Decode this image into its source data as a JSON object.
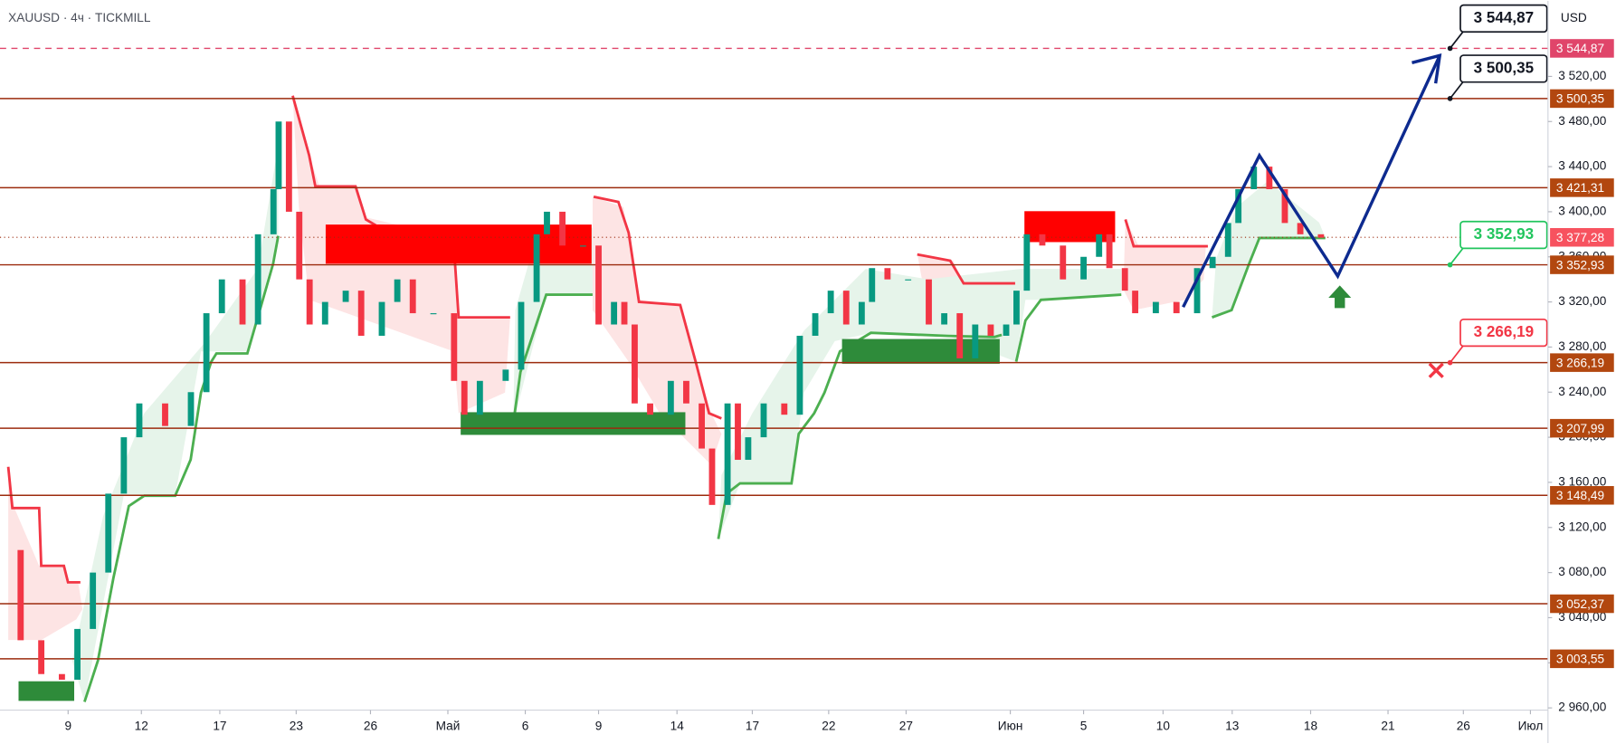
{
  "chart_data": {
    "type": "candlestick",
    "title": "XAUUSD · 4ч · TICKMILL",
    "currency": "USD",
    "x": [
      1,
      4,
      8,
      12,
      15,
      18,
      21,
      24,
      27,
      32,
      37,
      40,
      43,
      47,
      50,
      53,
      54,
      56,
      58,
      60,
      63,
      67,
      70,
      74,
      77,
      80,
      84,
      88,
      90,
      93,
      98,
      101,
      104,
      106,
      109,
      113,
      116,
      119,
      121,
      123,
      126,
      130,
      133,
      136,
      138,
      141,
      143,
      145,
      148,
      152,
      155,
      158,
      161,
      164,
      167,
      169,
      172,
      176,
      180,
      183,
      186,
      189,
      192,
      195,
      197,
      199,
      202,
      206,
      210,
      213,
      215,
      218,
      220,
      224,
      228,
      232,
      235,
      238,
      240,
      243,
      246,
      249,
      252,
      256
    ],
    "values": [
      3100,
      3020,
      2990,
      2985,
      3030,
      3080,
      3150,
      3200,
      3230,
      3210,
      3240,
      3310,
      3340,
      3300,
      3380,
      3420,
      3480,
      3400,
      3340,
      3300,
      3320,
      3330,
      3290,
      3320,
      3340,
      3310,
      3310,
      3250,
      3220,
      3250,
      3260,
      3320,
      3380,
      3400,
      3370,
      3370,
      3300,
      3320,
      3300,
      3230,
      3220,
      3250,
      3230,
      3190,
      3140,
      3230,
      3180,
      3200,
      3230,
      3220,
      3290,
      3310,
      3330,
      3300,
      3320,
      3350,
      3340,
      3340,
      3300,
      3310,
      3270,
      3300,
      3290,
      3300,
      3330,
      3380,
      3370,
      3340,
      3360,
      3380,
      3350,
      3330,
      3310,
      3320,
      3310,
      3350,
      3360,
      3390,
      3420,
      3440,
      3420,
      3390,
      3380,
      3377
    ],
    "xlim": [
      0,
      300
    ],
    "ylim": [
      2958,
      3587
    ],
    "xticks": [
      {
        "value": 13.2,
        "label": "9"
      },
      {
        "value": 27.4,
        "label": "12"
      },
      {
        "value": 42.6,
        "label": "17"
      },
      {
        "value": 57.4,
        "label": "23"
      },
      {
        "value": 71.8,
        "label": "26"
      },
      {
        "value": 86.8,
        "label": "Май"
      },
      {
        "value": 101.8,
        "label": "6"
      },
      {
        "value": 116,
        "label": "9"
      },
      {
        "value": 131.2,
        "label": "14"
      },
      {
        "value": 145.8,
        "label": "17"
      },
      {
        "value": 160.6,
        "label": "22"
      },
      {
        "value": 175.6,
        "label": "27"
      },
      {
        "value": 195.8,
        "label": "Июн"
      },
      {
        "value": 210,
        "label": "5"
      },
      {
        "value": 225.4,
        "label": "10"
      },
      {
        "value": 238.8,
        "label": "13"
      },
      {
        "value": 254,
        "label": "18"
      },
      {
        "value": 269,
        "label": "21"
      },
      {
        "value": 283.6,
        "label": "26"
      },
      {
        "value": 296.6,
        "label": "Июл"
      }
    ],
    "yticks": [
      {
        "value": 2960,
        "label": "2 960,00"
      },
      {
        "value": 3000,
        "label": "3 000,00"
      },
      {
        "value": 3040,
        "label": "3 040,00"
      },
      {
        "value": 3080,
        "label": "3 080,00"
      },
      {
        "value": 3120,
        "label": "3 120,00"
      },
      {
        "value": 3160,
        "label": "3 160,00"
      },
      {
        "value": 3200,
        "label": "3 200,00"
      },
      {
        "value": 3240,
        "label": "3 240,00"
      },
      {
        "value": 3280,
        "label": "3 280,00"
      },
      {
        "value": 3320,
        "label": "3 320,00"
      },
      {
        "value": 3360,
        "label": "3 360,00"
      },
      {
        "value": 3400,
        "label": "3 400,00"
      },
      {
        "value": 3440,
        "label": "3 440,00"
      },
      {
        "value": 3480,
        "label": "3 480,00"
      },
      {
        "value": 3520,
        "label": "3 520,00"
      }
    ],
    "up_color": "#089981",
    "down_color": "#f23645",
    "levels": [
      {
        "value": 3544.87,
        "label": "3 544,87",
        "color": "#e0456a",
        "dashed": true
      },
      {
        "value": 3500.35,
        "label": "3 500,35",
        "color": "#9c2b0e"
      },
      {
        "value": 3421.31,
        "label": "3 421,31",
        "color": "#9c2b0e"
      },
      {
        "value": 3377.28,
        "label": "3 377,28",
        "color": "#f7525f",
        "dotted": true
      },
      {
        "value": 3352.93,
        "label": "3 352,93",
        "color": "#9c2b0e"
      },
      {
        "value": 3266.19,
        "label": "3 266,19",
        "color": "#9c2b0e"
      },
      {
        "value": 3207.99,
        "label": "3 207,99",
        "color": "#9c2b0e"
      },
      {
        "value": 3148.49,
        "label": "3 148,49",
        "color": "#9c2b0e"
      },
      {
        "value": 3052.37,
        "label": "3 052,37",
        "color": "#9c2b0e"
      },
      {
        "value": 3003.55,
        "label": "3 003,55",
        "color": "#9c2b0e"
      }
    ],
    "callouts": [
      {
        "value": 3544.87,
        "label": "3 544,87",
        "color": "#131722"
      },
      {
        "value": 3500.35,
        "label": "3 500,35",
        "color": "#131722"
      },
      {
        "value": 3352.93,
        "label": "3 352,93",
        "color": "#22c55e"
      },
      {
        "value": 3266.19,
        "label": "3 266,19",
        "color": "#f23645"
      }
    ]
  }
}
